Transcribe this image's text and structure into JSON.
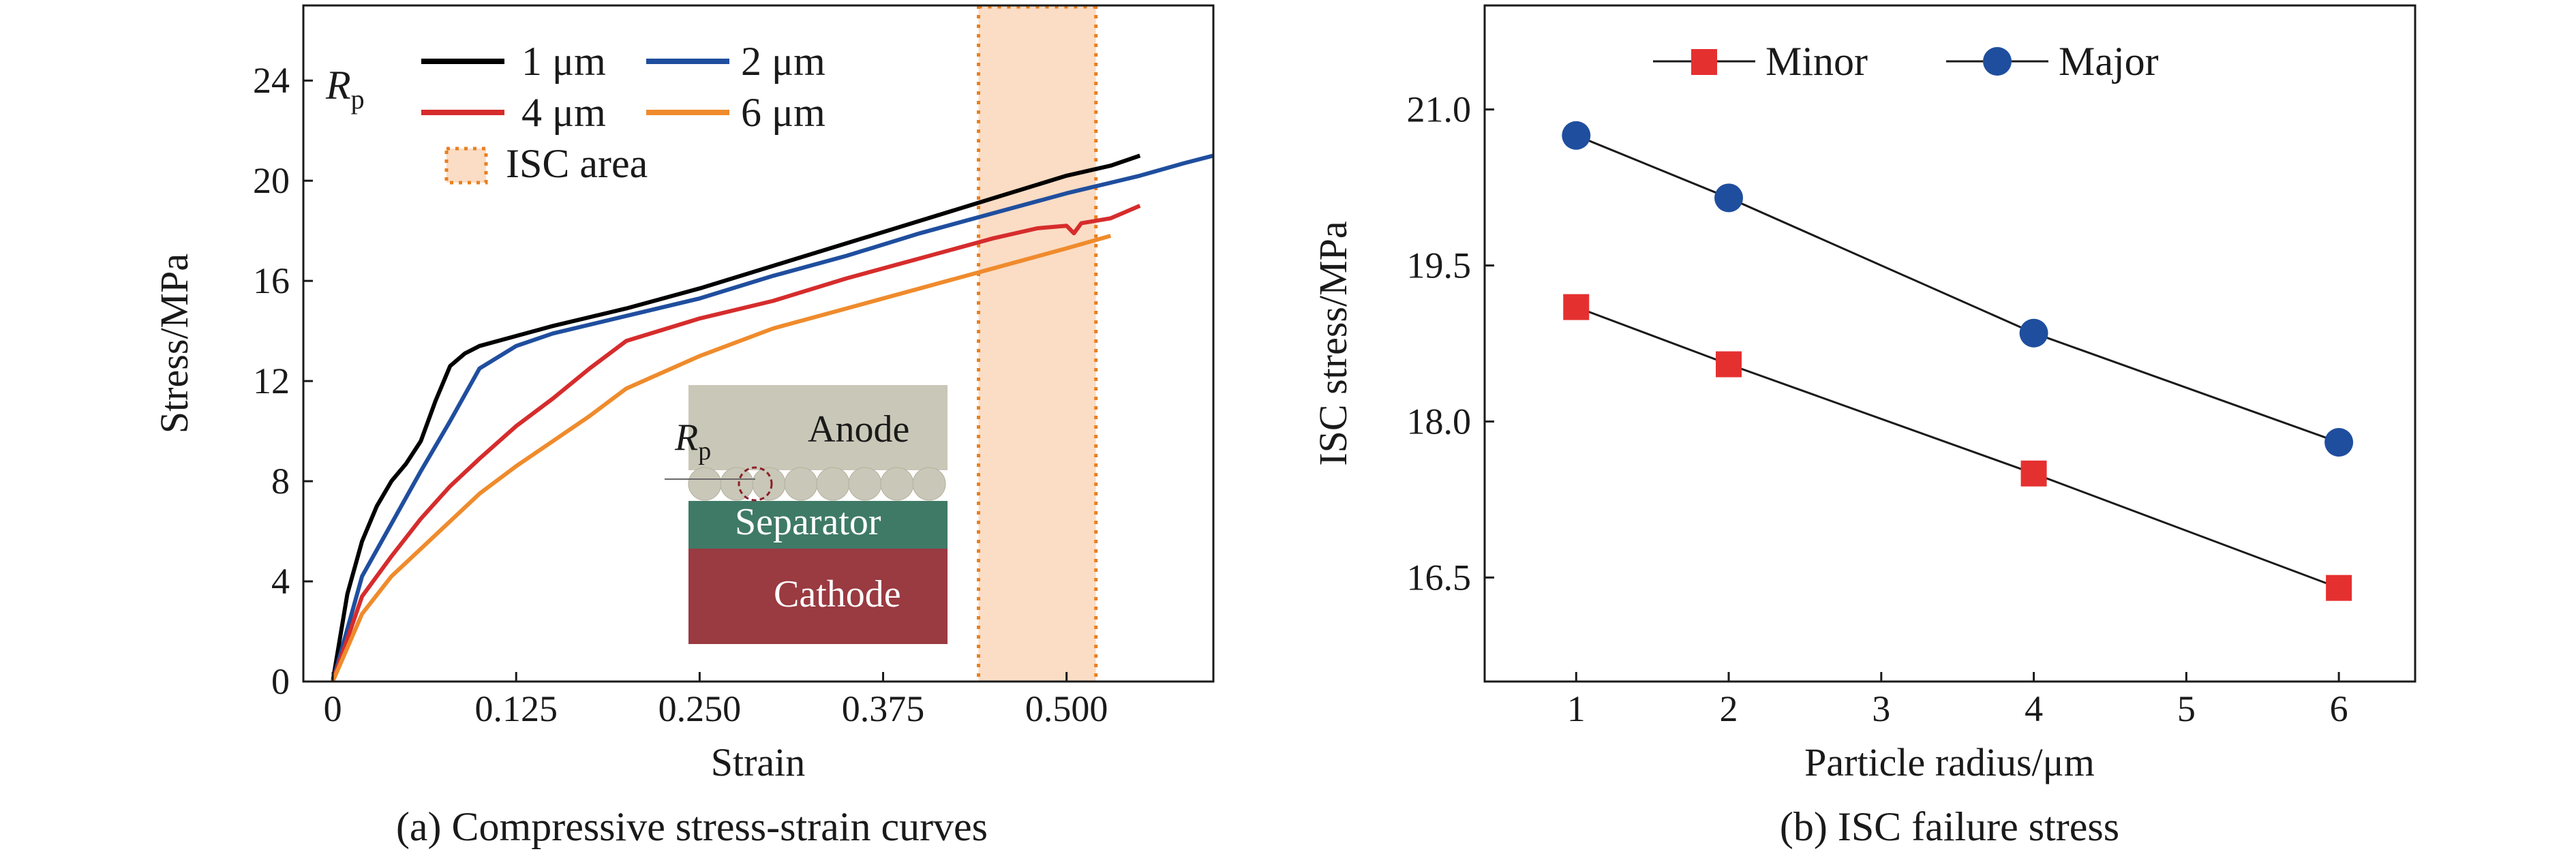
{
  "chart_data": [
    {
      "type": "line",
      "caption": "(a) Compressive stress-strain curves",
      "xlabel": "Strain",
      "ylabel": "Stress/MPa",
      "xlim": [
        -0.02,
        0.6
      ],
      "ylim": [
        0,
        27
      ],
      "xticks": [
        0,
        0.125,
        0.25,
        0.375,
        0.5
      ],
      "xtick_labels": [
        "0",
        "0.125",
        "0.250",
        "0.375",
        "0.500"
      ],
      "yticks": [
        0,
        4,
        8,
        12,
        16,
        20,
        24
      ],
      "ytick_labels": [
        "0",
        "4",
        "8",
        "12",
        "16",
        "20",
        "24"
      ],
      "legend_title": "R",
      "legend_title_sub": "p",
      "grid": false,
      "legend_position": "top-left",
      "series": [
        {
          "name": "1 μm",
          "color": "#000000",
          "x": [
            0,
            0.01,
            0.02,
            0.03,
            0.04,
            0.05,
            0.06,
            0.07,
            0.08,
            0.09,
            0.1,
            0.125,
            0.15,
            0.2,
            0.25,
            0.3,
            0.35,
            0.4,
            0.45,
            0.5,
            0.53,
            0.55
          ],
          "y": [
            0,
            3.5,
            5.6,
            7.0,
            8.0,
            8.7,
            9.6,
            11.2,
            12.6,
            13.1,
            13.4,
            13.8,
            14.2,
            14.9,
            15.7,
            16.6,
            17.5,
            18.4,
            19.3,
            20.2,
            20.6,
            21.0
          ]
        },
        {
          "name": "2 μm",
          "color": "#1f4e9e",
          "x": [
            0,
            0.02,
            0.04,
            0.06,
            0.08,
            0.1,
            0.125,
            0.15,
            0.2,
            0.25,
            0.3,
            0.35,
            0.4,
            0.45,
            0.5,
            0.55,
            0.58,
            0.6
          ],
          "y": [
            0,
            4.2,
            6.3,
            8.4,
            10.4,
            12.5,
            13.4,
            13.9,
            14.6,
            15.3,
            16.2,
            17.0,
            17.9,
            18.7,
            19.5,
            20.2,
            20.7,
            21.0
          ]
        },
        {
          "name": "4 μm",
          "color": "#d62c2c",
          "x": [
            0,
            0.02,
            0.04,
            0.06,
            0.08,
            0.1,
            0.125,
            0.15,
            0.175,
            0.2,
            0.25,
            0.3,
            0.35,
            0.4,
            0.45,
            0.48,
            0.5,
            0.505,
            0.51,
            0.53,
            0.55
          ],
          "y": [
            0,
            3.4,
            5.0,
            6.5,
            7.8,
            8.9,
            10.2,
            11.3,
            12.5,
            13.6,
            14.5,
            15.2,
            16.1,
            16.9,
            17.7,
            18.1,
            18.2,
            17.9,
            18.3,
            18.5,
            19.0
          ]
        },
        {
          "name": "6 μm",
          "color": "#ef8b2c",
          "x": [
            0,
            0.02,
            0.04,
            0.06,
            0.08,
            0.1,
            0.125,
            0.15,
            0.175,
            0.2,
            0.25,
            0.3,
            0.35,
            0.4,
            0.45,
            0.5,
            0.53
          ],
          "y": [
            0,
            2.7,
            4.2,
            5.3,
            6.4,
            7.5,
            8.6,
            9.6,
            10.6,
            11.7,
            13.0,
            14.1,
            14.9,
            15.7,
            16.5,
            17.3,
            17.8
          ]
        }
      ],
      "shaded_region": {
        "name": "ISC area",
        "x_start": 0.44,
        "x_end": 0.52,
        "color": "#fbdcc5",
        "border": "#e8801f"
      }
    },
    {
      "type": "line",
      "caption": "(b) ISC failure stress",
      "xlabel": "Particle radius/μm",
      "ylabel": "ISC stress/MPa",
      "xlim": [
        0.4,
        6.5
      ],
      "ylim": [
        15.5,
        22.0
      ],
      "xticks": [
        1,
        2,
        3,
        4,
        5,
        6
      ],
      "xtick_labels": [
        "1",
        "2",
        "3",
        "4",
        "5",
        "6"
      ],
      "yticks": [
        16.5,
        18.0,
        19.5,
        21.0
      ],
      "ytick_labels": [
        "16.5",
        "18.0",
        "19.5",
        "21.0"
      ],
      "grid": false,
      "legend_position": "top",
      "series": [
        {
          "name": "Minor",
          "marker": "square",
          "color": "#e53030",
          "x": [
            1,
            2,
            4,
            6
          ],
          "y": [
            19.1,
            18.55,
            17.5,
            16.4
          ]
        },
        {
          "name": "Major",
          "marker": "circle",
          "color": "#1f4e9e",
          "x": [
            1,
            2,
            4,
            6
          ],
          "y": [
            20.75,
            20.15,
            18.85,
            17.8
          ]
        }
      ]
    }
  ],
  "inset": {
    "anode_label": "Anode",
    "separator_label": "Separator",
    "cathode_label": "Cathode",
    "radius_label": "R",
    "radius_sub": "p",
    "colors": {
      "anode": "#c9c7b7",
      "separator": "#3f7a67",
      "cathode": "#9a3a41",
      "circle": "#8b1f2a"
    }
  }
}
